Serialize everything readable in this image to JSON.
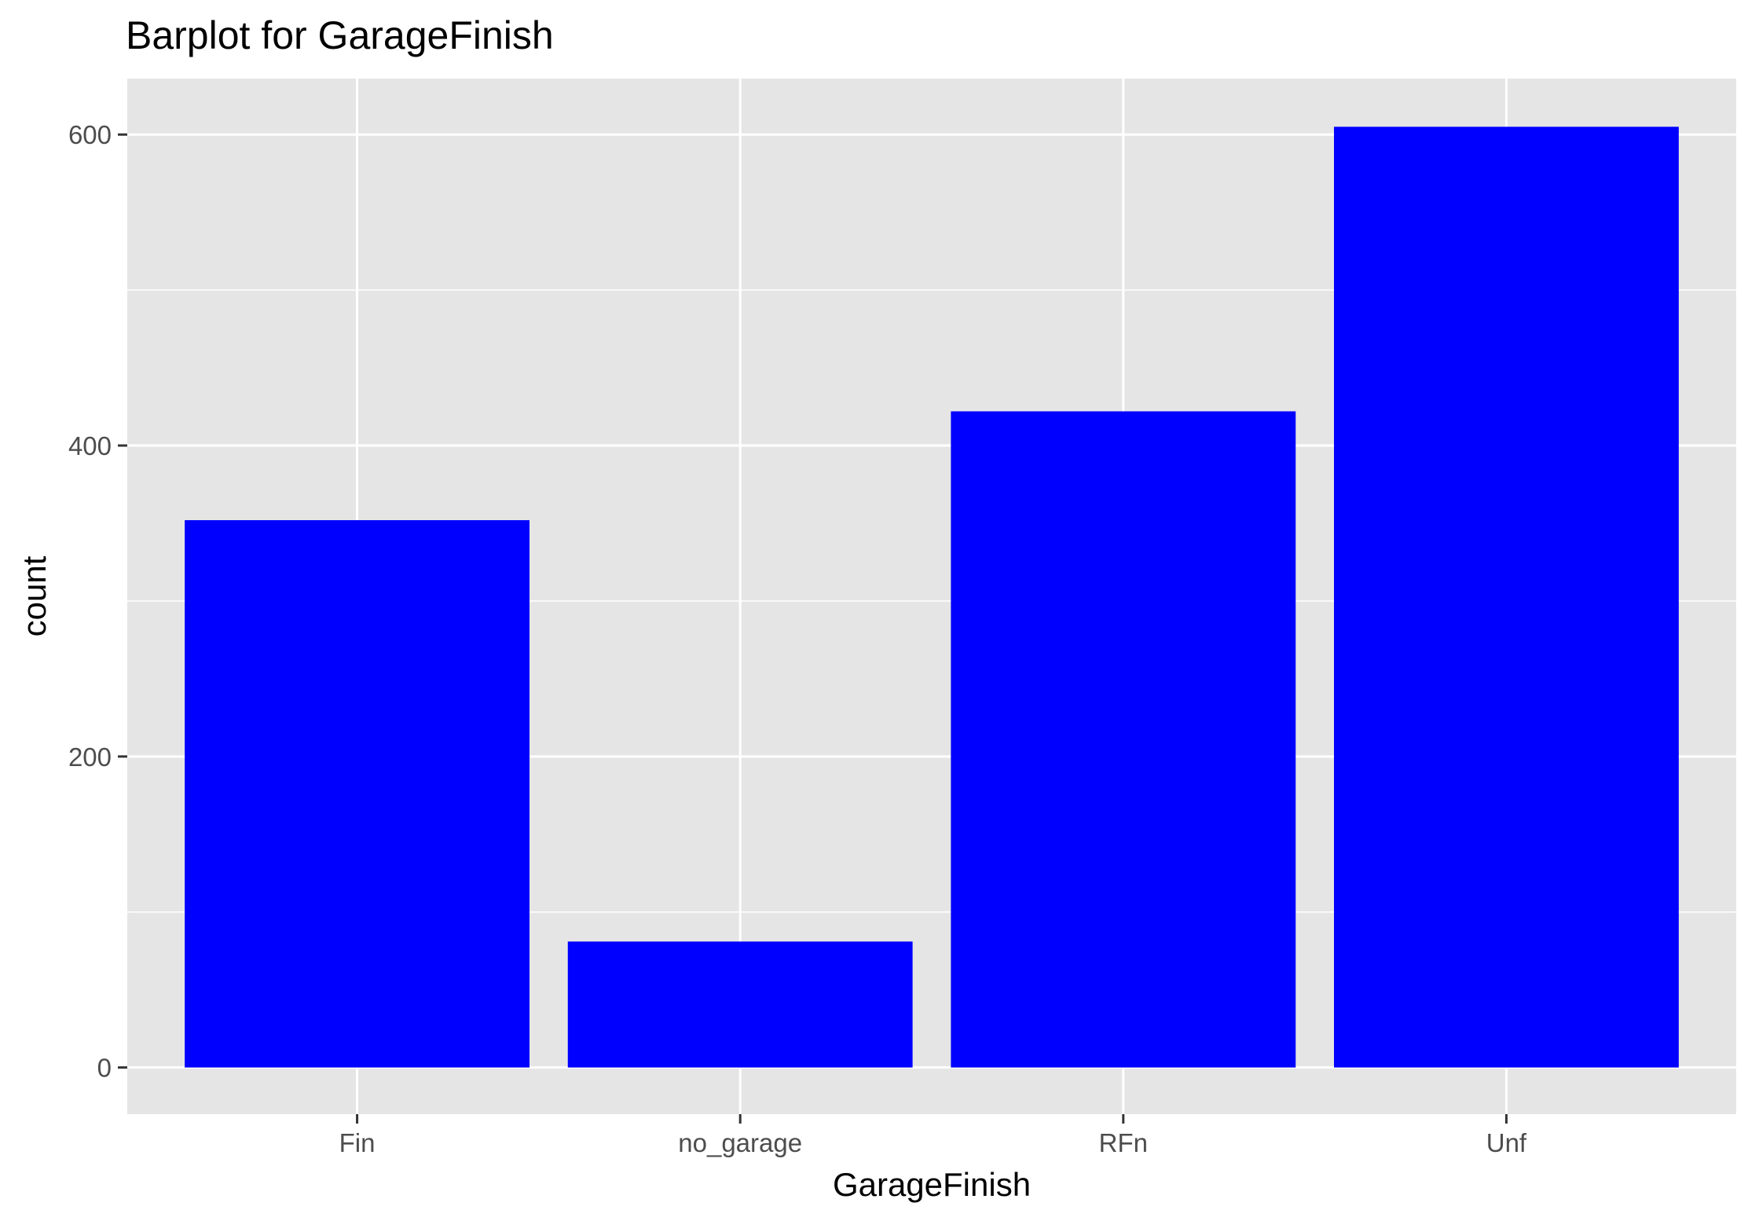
{
  "colors": {
    "bar_fill": "#0000ff",
    "panel_background": "#e5e5e5",
    "grid_line": "#ffffff",
    "tick_text": "#4d4d4d",
    "tick_mark": "#333333"
  },
  "chart_data": {
    "type": "bar",
    "title": "Barplot for GarageFinish",
    "xlabel": "GarageFinish",
    "ylabel": "count",
    "categories": [
      "Fin",
      "no_garage",
      "RFn",
      "Unf"
    ],
    "values": [
      352,
      81,
      422,
      605
    ],
    "ylim": [
      -30,
      636
    ],
    "y_ticks": [
      0,
      200,
      400,
      600
    ],
    "y_minor_ticks": [
      100,
      300,
      500
    ],
    "grid": true,
    "legend": "none"
  }
}
